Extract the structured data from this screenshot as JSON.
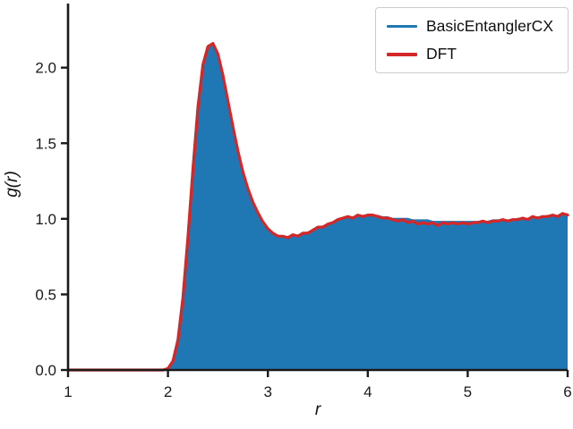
{
  "figure": {
    "background": "#ffffff"
  },
  "chart_data": {
    "type": "area",
    "title": "",
    "xlabel": "r",
    "ylabel": "g(r)",
    "xlim": [
      1,
      6
    ],
    "ylim": [
      0,
      2.4
    ],
    "xticks": [
      1,
      2,
      3,
      4,
      5,
      6
    ],
    "yticks": [
      0.0,
      0.5,
      1.0,
      1.5,
      2.0
    ],
    "xtick_labels": [
      "1",
      "2",
      "3",
      "4",
      "5",
      "6"
    ],
    "ytick_labels": [
      "0.0",
      "0.5",
      "1.0",
      "1.5",
      "2.0"
    ],
    "grid": false,
    "legend_position": "upper right",
    "axis_color": "#1a1a1a",
    "x": [
      1,
      1.05,
      1.1,
      1.15,
      1.2,
      1.25,
      1.3,
      1.35,
      1.4,
      1.45,
      1.5,
      1.55,
      1.6,
      1.65,
      1.7,
      1.75,
      1.8,
      1.85,
      1.9,
      1.95,
      2,
      2.05,
      2.1,
      2.15,
      2.2,
      2.25,
      2.3,
      2.35,
      2.4,
      2.45,
      2.5,
      2.55,
      2.6,
      2.65,
      2.7,
      2.75,
      2.8,
      2.85,
      2.9,
      2.95,
      3,
      3.05,
      3.1,
      3.15,
      3.2,
      3.25,
      3.3,
      3.35,
      3.4,
      3.45,
      3.5,
      3.55,
      3.6,
      3.65,
      3.7,
      3.75,
      3.8,
      3.85,
      3.9,
      3.95,
      4,
      4.05,
      4.1,
      4.15,
      4.2,
      4.25,
      4.3,
      4.35,
      4.4,
      4.45,
      4.5,
      4.55,
      4.6,
      4.65,
      4.7,
      4.75,
      4.8,
      4.85,
      4.9,
      4.95,
      5,
      5.05,
      5.1,
      5.15,
      5.2,
      5.25,
      5.3,
      5.35,
      5.4,
      5.45,
      5.5,
      5.55,
      5.6,
      5.65,
      5.7,
      5.75,
      5.8,
      5.85,
      5.9,
      5.95,
      6
    ],
    "series": [
      {
        "name": "BasicEntanglerCX",
        "color": "#1f77b4",
        "style": "filled-area",
        "values": [
          0,
          0,
          0,
          0,
          0,
          0,
          0,
          0,
          0,
          0,
          0,
          0,
          0,
          0,
          0,
          0,
          0,
          0,
          0,
          0,
          0.01,
          0.05,
          0.18,
          0.45,
          0.85,
          1.3,
          1.72,
          2.0,
          2.13,
          2.15,
          2.08,
          1.94,
          1.77,
          1.6,
          1.44,
          1.3,
          1.19,
          1.1,
          1.03,
          0.97,
          0.93,
          0.9,
          0.89,
          0.88,
          0.88,
          0.89,
          0.89,
          0.9,
          0.91,
          0.92,
          0.94,
          0.95,
          0.96,
          0.97,
          0.99,
          1.0,
          1.01,
          1.01,
          1.02,
          1.02,
          1.02,
          1.02,
          1.02,
          1.01,
          1.01,
          1.0,
          1.0,
          1.0,
          1.0,
          0.99,
          0.99,
          0.99,
          0.99,
          0.98,
          0.98,
          0.98,
          0.98,
          0.98,
          0.98,
          0.98,
          0.98,
          0.98,
          0.98,
          0.98,
          0.98,
          0.99,
          0.99,
          0.99,
          0.99,
          0.99,
          1.0,
          1.0,
          1.0,
          1.01,
          1.01,
          1.01,
          1.02,
          1.02,
          1.02,
          1.02,
          1.03
        ]
      },
      {
        "name": "DFT",
        "color": "#d62728",
        "style": "line",
        "values": [
          0,
          0,
          0,
          0,
          0,
          0,
          0,
          0,
          0,
          0,
          0,
          0,
          0,
          0,
          0,
          0,
          0,
          0,
          0,
          0,
          0.01,
          0.06,
          0.2,
          0.48,
          0.88,
          1.33,
          1.74,
          2.02,
          2.14,
          2.16,
          2.09,
          1.95,
          1.78,
          1.61,
          1.45,
          1.31,
          1.2,
          1.11,
          1.04,
          0.98,
          0.935,
          0.905,
          0.885,
          0.885,
          0.875,
          0.895,
          0.885,
          0.905,
          0.905,
          0.925,
          0.945,
          0.945,
          0.965,
          0.975,
          0.995,
          1.005,
          1.015,
          1.005,
          1.025,
          1.015,
          1.025,
          1.025,
          1.015,
          1.005,
          1.005,
          0.995,
          0.985,
          0.995,
          0.975,
          0.985,
          0.965,
          0.975,
          0.965,
          0.975,
          0.955,
          0.975,
          0.965,
          0.975,
          0.965,
          0.975,
          0.965,
          0.975,
          0.975,
          0.985,
          0.975,
          0.985,
          0.985,
          0.995,
          0.985,
          0.995,
          0.995,
          1.005,
          0.995,
          1.015,
          1.005,
          1.015,
          1.015,
          1.025,
          1.015,
          1.035,
          1.025
        ]
      }
    ]
  }
}
